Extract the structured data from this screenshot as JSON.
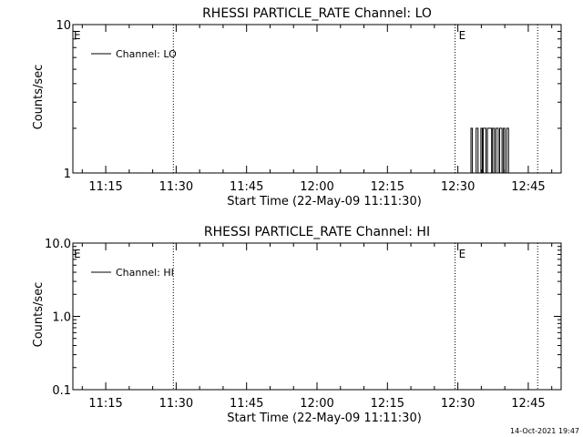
{
  "footer": {
    "timestamp": "14-Oct-2021 19:47"
  },
  "chart_data": [
    {
      "type": "line",
      "title": "RHESSI PARTICLE_RATE Channel: LO",
      "xlabel": "Start Time (22-May-09 11:11:30)",
      "ylabel": "Counts/sec",
      "yscale": "log",
      "ylim": [
        1,
        10
      ],
      "y_ticks": [
        {
          "value": 1,
          "label": "1"
        },
        {
          "value": 10,
          "label": "10"
        }
      ],
      "xlim": [
        "11:08",
        "12:52"
      ],
      "x_ticks": [
        "11:15",
        "11:30",
        "11:45",
        "12:00",
        "12:15",
        "12:30",
        "12:45"
      ],
      "grid": false,
      "legend": {
        "position": "top-left",
        "entries": [
          "Channel: LO"
        ]
      },
      "markers": [
        {
          "time": "11:08",
          "label": "E"
        },
        {
          "time": "12:30",
          "label": "E"
        }
      ],
      "vlines": [
        "11:29.4",
        "12:29.4",
        "12:47"
      ],
      "series": [
        {
          "name": "Channel: LO",
          "step": true,
          "points": [
            [
              "12:32.5",
              1
            ],
            [
              "12:32.8",
              2
            ],
            [
              "12:33.1",
              1
            ],
            [
              "12:33.6",
              1
            ],
            [
              "12:33.9",
              2
            ],
            [
              "12:34.3",
              1
            ],
            [
              "12:34.9",
              2
            ],
            [
              "12:35.2",
              1
            ],
            [
              "12:35.4",
              2
            ],
            [
              "12:36.0",
              1
            ],
            [
              "12:36.3",
              2
            ],
            [
              "12:36.9",
              2
            ],
            [
              "12:37.2",
              1
            ],
            [
              "12:37.4",
              2
            ],
            [
              "12:37.8",
              1
            ],
            [
              "12:38.1",
              2
            ],
            [
              "12:38.6",
              1
            ],
            [
              "12:38.9",
              2
            ],
            [
              "12:39.4",
              1
            ],
            [
              "12:39.7",
              2
            ],
            [
              "12:40.0",
              1
            ],
            [
              "12:40.4",
              2
            ],
            [
              "12:40.8",
              1
            ]
          ]
        }
      ]
    },
    {
      "type": "line",
      "title": "RHESSI PARTICLE_RATE Channel: HI",
      "xlabel": "Start Time (22-May-09 11:11:30)",
      "ylabel": "Counts/sec",
      "yscale": "log",
      "ylim": [
        0.1,
        10
      ],
      "y_ticks": [
        {
          "value": 0.1,
          "label": "0.1"
        },
        {
          "value": 1,
          "label": "1.0"
        },
        {
          "value": 10,
          "label": "10.0"
        }
      ],
      "xlim": [
        "11:08",
        "12:52"
      ],
      "x_ticks": [
        "11:15",
        "11:30",
        "11:45",
        "12:00",
        "12:15",
        "12:30",
        "12:45"
      ],
      "grid": false,
      "legend": {
        "position": "top-left",
        "entries": [
          "Channel: HI"
        ]
      },
      "markers": [
        {
          "time": "11:08",
          "label": "E"
        },
        {
          "time": "12:30",
          "label": "E"
        }
      ],
      "vlines": [
        "11:29.4",
        "12:29.4",
        "12:47"
      ],
      "series": [
        {
          "name": "Channel: HI",
          "step": true,
          "points": []
        }
      ]
    }
  ]
}
